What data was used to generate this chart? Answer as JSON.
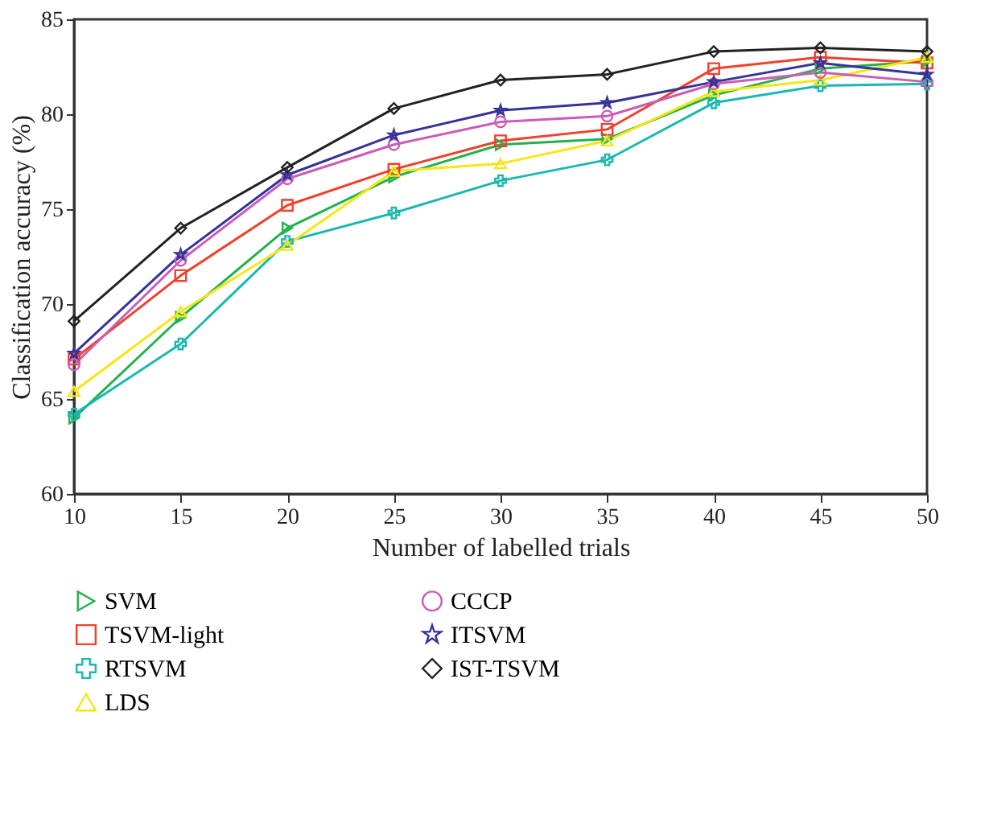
{
  "chart_data": {
    "type": "line",
    "xlabel": "Number of labelled trials",
    "ylabel": "Classification accuracy (%)",
    "x": [
      10,
      15,
      20,
      25,
      30,
      35,
      40,
      45,
      50
    ],
    "xlim": [
      10,
      50
    ],
    "xticks": [
      10,
      15,
      20,
      25,
      30,
      35,
      40,
      45,
      50
    ],
    "ylim": [
      60,
      85
    ],
    "yticks": [
      60,
      65,
      70,
      75,
      80,
      85
    ],
    "grid": false,
    "legend": "bottom",
    "line_style": "solid",
    "series": [
      {
        "name": "SVM",
        "color": "#22b14c",
        "marker": "triangle-right",
        "values": [
          64.0,
          69.3,
          74.0,
          76.7,
          78.4,
          78.7,
          81.0,
          82.4,
          82.8
        ]
      },
      {
        "name": "TSVM-light",
        "color": "#f0402a",
        "marker": "square",
        "values": [
          67.1,
          71.5,
          75.2,
          77.1,
          78.6,
          79.2,
          82.4,
          83.0,
          82.7
        ]
      },
      {
        "name": "RTSVM",
        "color": "#1ab8b0",
        "marker": "cross",
        "values": [
          64.2,
          67.9,
          73.3,
          74.8,
          76.5,
          77.6,
          80.6,
          81.5,
          81.6
        ]
      },
      {
        "name": "LDS",
        "color": "#f5e614",
        "marker": "triangle",
        "values": [
          65.4,
          69.6,
          73.1,
          77.0,
          77.4,
          78.6,
          81.2,
          81.8,
          83.0
        ]
      },
      {
        "name": "CCCP",
        "color": "#cc5bb4",
        "marker": "circle",
        "values": [
          66.8,
          72.3,
          76.6,
          78.4,
          79.6,
          79.9,
          81.6,
          82.2,
          81.7
        ]
      },
      {
        "name": "ITSVM",
        "color": "#35339a",
        "marker": "star",
        "values": [
          67.4,
          72.6,
          76.8,
          78.9,
          80.2,
          80.6,
          81.7,
          82.7,
          82.1
        ]
      },
      {
        "name": "IST-TSVM",
        "color": "#222222",
        "marker": "diamond",
        "values": [
          69.1,
          74.0,
          77.2,
          80.3,
          81.8,
          82.1,
          83.3,
          83.5,
          83.3
        ]
      }
    ]
  }
}
